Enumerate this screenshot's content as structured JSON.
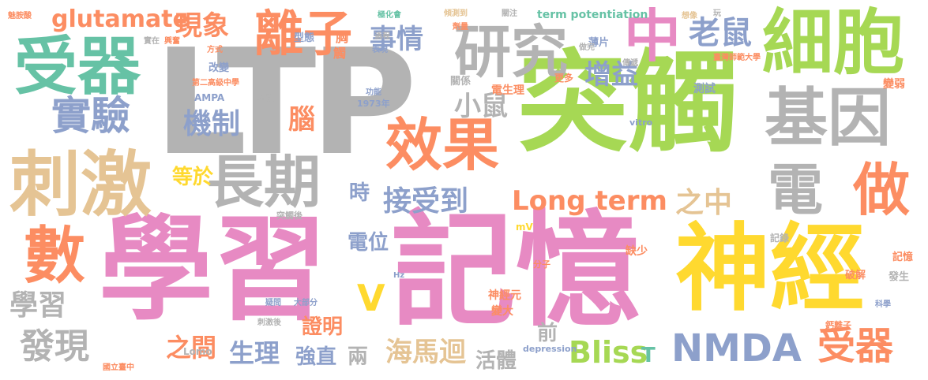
{
  "palette": {
    "pink": "#e78ac3",
    "green": "#a6d854",
    "gray": "#b3b3b3",
    "orange": "#fc8d62",
    "teal": "#66c2a5",
    "blue": "#8da0cb",
    "yellow": "#ffd92f",
    "tan": "#e5c494"
  },
  "words": [
    {
      "text": "LTP",
      "color": "gray"
    },
    {
      "text": "學習",
      "color": "pink"
    },
    {
      "text": "記憶",
      "color": "pink"
    },
    {
      "text": "突觸",
      "color": "green"
    },
    {
      "text": "神經",
      "color": "yellow"
    },
    {
      "text": "刺激",
      "color": "tan"
    },
    {
      "text": "細胞",
      "color": "green"
    },
    {
      "text": "受器",
      "color": "teal"
    },
    {
      "text": "研究",
      "color": "gray"
    },
    {
      "text": "基因",
      "color": "gray"
    },
    {
      "text": "效果",
      "color": "orange"
    },
    {
      "text": "長期",
      "color": "gray"
    },
    {
      "text": "數",
      "color": "orange"
    },
    {
      "text": "離子",
      "color": "orange"
    },
    {
      "text": "做",
      "color": "orange"
    },
    {
      "text": "電",
      "color": "gray"
    },
    {
      "text": "中",
      "color": "pink"
    },
    {
      "text": "實驗",
      "color": "blue"
    },
    {
      "text": "NMDA",
      "color": "blue"
    },
    {
      "text": "受器",
      "color": "orange"
    },
    {
      "text": "Long term",
      "color": "orange"
    },
    {
      "text": "接受到",
      "color": "blue"
    },
    {
      "text": "機制",
      "color": "blue"
    },
    {
      "text": "老鼠",
      "color": "blue"
    },
    {
      "text": "現象",
      "color": "orange"
    },
    {
      "text": "事情",
      "color": "blue"
    },
    {
      "text": "增益",
      "color": "blue"
    },
    {
      "text": "小鼠",
      "color": "gray"
    },
    {
      "text": "glutamate",
      "color": "orange"
    },
    {
      "text": "學習",
      "color": "gray"
    },
    {
      "text": "發現",
      "color": "gray"
    },
    {
      "text": "V",
      "color": "yellow"
    },
    {
      "text": "之中",
      "color": "tan"
    },
    {
      "text": "Bliss",
      "color": "green"
    },
    {
      "text": "海馬迴",
      "color": "tan"
    },
    {
      "text": "生理",
      "color": "blue"
    },
    {
      "text": "之間",
      "color": "orange"
    },
    {
      "text": "證明",
      "color": "orange"
    },
    {
      "text": "強直",
      "color": "blue"
    },
    {
      "text": "兩",
      "color": "gray"
    },
    {
      "text": "活體",
      "color": "gray"
    },
    {
      "text": "腦",
      "color": "orange"
    },
    {
      "text": "電位",
      "color": "blue"
    },
    {
      "text": "等於",
      "color": "yellow"
    },
    {
      "text": "時",
      "color": "blue"
    },
    {
      "text": "前",
      "color": "gray"
    },
    {
      "text": "T",
      "color": "teal"
    },
    {
      "text": "term potentiation",
      "color": "teal"
    },
    {
      "text": "神經元",
      "color": "orange"
    },
    {
      "text": "電生理",
      "color": "orange"
    },
    {
      "text": "變大",
      "color": "orange"
    },
    {
      "text": "缺少",
      "color": "orange"
    },
    {
      "text": "記錄",
      "color": "gray"
    },
    {
      "text": "改變",
      "color": "blue"
    },
    {
      "text": "AMPA",
      "color": "blue"
    },
    {
      "text": "1973年",
      "color": "blue"
    },
    {
      "text": "Lomo",
      "color": "gray"
    },
    {
      "text": "depression",
      "color": "blue"
    },
    {
      "text": "vitro",
      "color": "blue"
    },
    {
      "text": "mV",
      "color": "yellow"
    },
    {
      "text": "Hz",
      "color": "blue"
    },
    {
      "text": "胸",
      "color": "orange"
    },
    {
      "text": "型態",
      "color": "blue"
    },
    {
      "text": "觸",
      "color": "orange"
    },
    {
      "text": "薄片",
      "color": "blue"
    },
    {
      "text": "更多",
      "color": "orange"
    },
    {
      "text": "測試",
      "color": "blue"
    },
    {
      "text": "關係",
      "color": "gray"
    },
    {
      "text": "功能",
      "color": "blue"
    },
    {
      "text": "分子",
      "color": "orange"
    },
    {
      "text": "記憶",
      "color": "orange"
    },
    {
      "text": "發生",
      "color": "gray"
    },
    {
      "text": "變弱",
      "color": "orange"
    },
    {
      "text": "實在",
      "color": "gray"
    },
    {
      "text": "興奮",
      "color": "orange"
    },
    {
      "text": "科學",
      "color": "blue"
    },
    {
      "text": "刺激後",
      "color": "gray"
    },
    {
      "text": "突觸後",
      "color": "gray"
    },
    {
      "text": "大部分",
      "color": "blue"
    },
    {
      "text": "疑問",
      "color": "blue"
    },
    {
      "text": "破解",
      "color": "orange"
    },
    {
      "text": "鈣離子",
      "color": "orange"
    },
    {
      "text": "增強",
      "color": "gray"
    },
    {
      "text": "國立臺中",
      "color": "orange"
    },
    {
      "text": "臺灣師範大學",
      "color": "orange"
    },
    {
      "text": "第二高級中學",
      "color": "orange"
    },
    {
      "text": "極化會",
      "color": "teal"
    },
    {
      "text": "傾測到",
      "color": "tan"
    },
    {
      "text": "關注",
      "color": "gray"
    },
    {
      "text": "想像",
      "color": "tan"
    },
    {
      "text": "玩",
      "color": "gray"
    },
    {
      "text": "方式",
      "color": "orange"
    },
    {
      "text": "過程",
      "color": "gray"
    },
    {
      "text": "表現",
      "color": "blue"
    },
    {
      "text": "做完",
      "color": "gray"
    },
    {
      "text": "傳遞",
      "color": "gray"
    },
    {
      "text": "劑量",
      "color": "orange"
    },
    {
      "text": "魅胺酸",
      "color": "orange"
    }
  ]
}
